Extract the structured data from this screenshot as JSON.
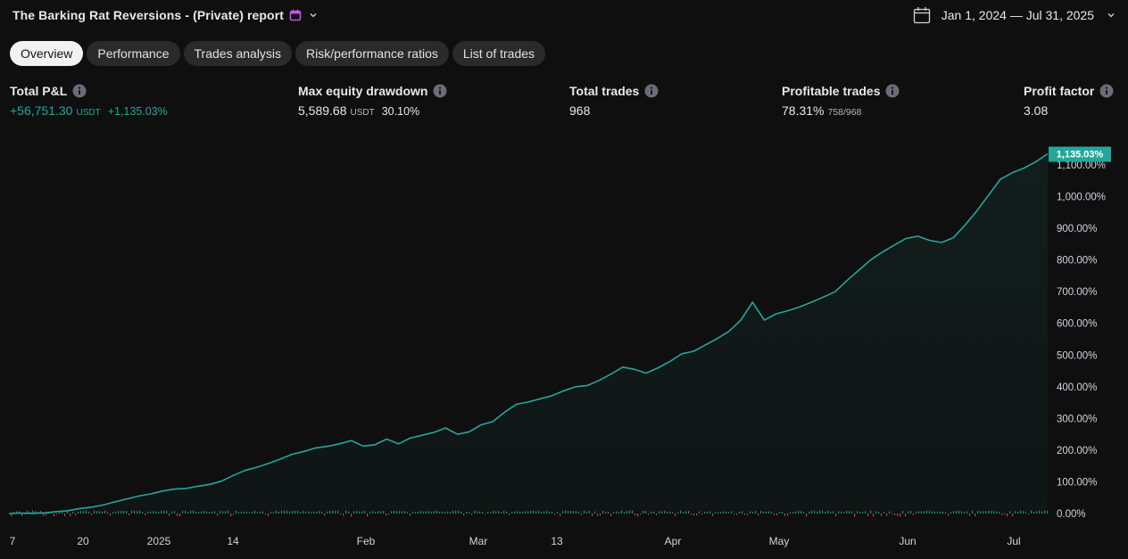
{
  "header": {
    "title": "The Barking Rat Reversions - (Private) report",
    "date_range": "Jan 1, 2024 — Jul 31, 2025"
  },
  "tabs": [
    {
      "label": "Overview",
      "active": true
    },
    {
      "label": "Performance",
      "active": false
    },
    {
      "label": "Trades analysis",
      "active": false
    },
    {
      "label": "Risk/performance ratios",
      "active": false
    },
    {
      "label": "List of trades",
      "active": false
    }
  ],
  "metrics": {
    "total_pl": {
      "label": "Total P&L",
      "value": "+56,751.30",
      "unit": "USDT",
      "pct": "+1,135.03%"
    },
    "max_drawdown": {
      "label": "Max equity drawdown",
      "value": "5,589.68",
      "unit": "USDT",
      "pct": "30.10%"
    },
    "total_trades": {
      "label": "Total trades",
      "value": "968"
    },
    "profitable_trades": {
      "label": "Profitable trades",
      "value": "78.31%",
      "detail": "758/968"
    },
    "profit_factor": {
      "label": "Profit factor",
      "value": "3.08"
    }
  },
  "colors": {
    "background": "#0f0f0f",
    "equity_line": "#26a69a",
    "positive": "#26a69a",
    "negative": "#ef5350",
    "tab_active_bg": "#f2f2f2",
    "tab_bg": "#2a2a2a",
    "title_icon": "#c653e6"
  },
  "icons": {
    "title_icon": "calendar-icon",
    "dropdown": "chevron-down-icon",
    "date_picker": "calendar-icon",
    "info": "info-icon"
  },
  "chart_data": {
    "type": "area",
    "series": [
      {
        "y": [
          0,
          1.5,
          0.5,
          2,
          6,
          9,
          16,
          20,
          27,
          37,
          46,
          55,
          62,
          71,
          77,
          79,
          86,
          92,
          102,
          120,
          136,
          146,
          158,
          172,
          187,
          196,
          207,
          212,
          220,
          230,
          213,
          217,
          235,
          220,
          238,
          247,
          256,
          270,
          250,
          258,
          280,
          290,
          320,
          345,
          352,
          362,
          372,
          387,
          400,
          404,
          420,
          440,
          462,
          455,
          443,
          460,
          480,
          504,
          512,
          532,
          552,
          575,
          610,
          667,
          610,
          630,
          640,
          652,
          667,
          683,
          700,
          735,
          768,
          800,
          825,
          847,
          868,
          875,
          862,
          855,
          870,
          910,
          955,
          1005,
          1055,
          1075,
          1090,
          1110,
          1135.03
        ]
      }
    ],
    "y_axis": {
      "unit": "%",
      "ticks": [
        "0.00%",
        "100.00%",
        "200.00%",
        "300.00%",
        "400.00%",
        "500.00%",
        "600.00%",
        "700.00%",
        "800.00%",
        "900.00%",
        "1,000.00%",
        "1,100.00%"
      ],
      "range": [
        0,
        1135.03
      ],
      "last_value_label": "1,135.03%"
    },
    "x_axis": {
      "tick_labels": [
        "7",
        "20",
        "2025",
        "14",
        "Feb",
        "Mar",
        "13",
        "Apr",
        "May",
        "Jun",
        "Jul"
      ]
    },
    "grid": false
  }
}
